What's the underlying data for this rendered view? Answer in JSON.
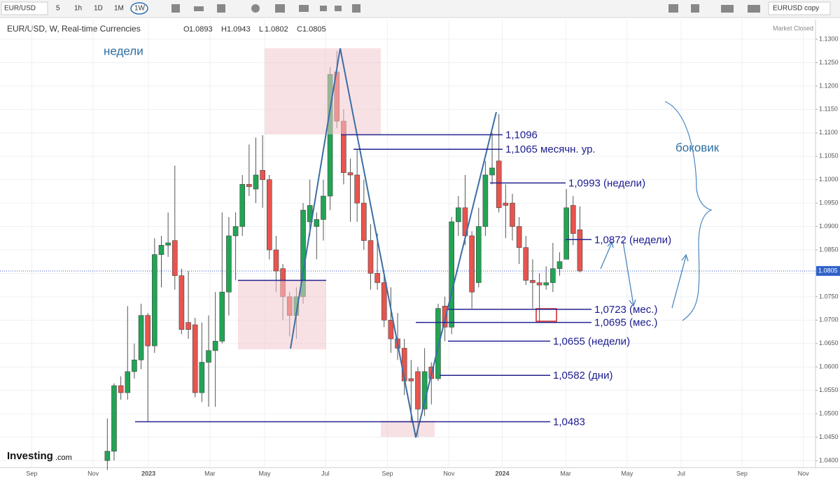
{
  "toolbar": {
    "symbol": "EUR/USD",
    "intervals": [
      "5",
      "1h",
      "1D",
      "1M",
      "1W"
    ],
    "layout": "EURUSD copy"
  },
  "chart_data": {
    "type": "candlestick",
    "title": "EUR/USD, W, Real-time Currencies",
    "ohlc": [
      {
        "label": "O",
        "value": 1.0893
      },
      {
        "label": "H",
        "value": 1.0943
      },
      {
        "label": "L",
        "value": 1.0802
      },
      {
        "label": "C",
        "value": 1.0805
      }
    ],
    "status": "Market Closed",
    "brand": "Investing",
    "brand_suffix": ".com",
    "last_price": 1.0805,
    "up_color": "#22a455",
    "down_color": "#e8544e",
    "x": [
      0,
      1,
      2,
      3,
      4,
      5,
      6,
      7,
      8,
      9,
      10,
      11,
      12,
      13,
      14,
      15,
      16,
      17,
      18,
      19,
      20,
      21,
      22,
      23,
      24,
      25,
      26,
      27,
      28,
      29,
      30,
      31,
      32,
      33,
      34,
      35,
      36,
      37,
      38,
      39,
      40,
      41,
      42,
      43,
      44,
      45,
      46,
      47,
      48,
      49,
      50,
      51,
      52,
      53,
      54,
      55,
      56,
      57,
      58,
      59,
      60,
      61,
      62,
      63,
      64,
      65,
      66,
      67,
      68,
      69,
      70
    ],
    "open": [
      1.04,
      1.042,
      1.056,
      1.0545,
      1.059,
      1.0615,
      1.071,
      1.0645,
      1.084,
      1.086,
      1.087,
      1.0795,
      1.0695,
      1.069,
      1.0545,
      1.061,
      1.0635,
      1.0655,
      1.076,
      1.088,
      1.09,
      1.099,
      1.098,
      1.102,
      1.1,
      1.085,
      1.081,
      1.075,
      1.071,
      1.075,
      1.091,
      1.09,
      1.0915,
      1.0965,
      1.123,
      1.1125,
      1.1015,
      1.101,
      1.095,
      1.087,
      1.08,
      1.078,
      1.07,
      1.066,
      1.064,
      1.0575,
      1.059,
      1.051,
      1.06,
      1.0575,
      1.073,
      1.0685,
      1.091,
      1.094,
      1.088,
      1.078,
      1.09,
      1.101,
      1.104,
      1.095,
      1.095,
      1.09,
      1.0855,
      1.0785,
      1.078,
      1.0775,
      1.078,
      1.081,
      1.083,
      1.0945,
      1.0893
    ],
    "high": [
      1.049,
      1.0565,
      1.058,
      1.073,
      1.065,
      1.0735,
      1.0715,
      1.0875,
      1.088,
      1.093,
      1.103,
      1.081,
      1.0805,
      1.0705,
      1.0695,
      1.071,
      1.076,
      1.093,
      1.092,
      1.093,
      1.101,
      1.1075,
      1.109,
      1.1095,
      1.101,
      1.088,
      1.082,
      1.076,
      1.077,
      1.095,
      1.1,
      1.093,
      1.1,
      1.124,
      1.1275,
      1.115,
      1.1045,
      1.1065,
      1.1,
      1.0905,
      1.0885,
      1.08,
      1.077,
      1.0715,
      1.066,
      1.0615,
      1.06,
      1.064,
      1.061,
      1.0735,
      1.075,
      1.092,
      1.0965,
      1.101,
      1.089,
      1.094,
      1.104,
      1.11,
      1.114,
      1.099,
      1.097,
      1.092,
      1.088,
      1.083,
      1.08,
      1.0815,
      1.0865,
      1.0845,
      1.098,
      1.0965,
      1.0943
    ],
    "low": [
      1.038,
      1.04,
      1.053,
      1.053,
      1.0575,
      1.0595,
      1.0483,
      1.063,
      1.077,
      1.0835,
      1.0765,
      1.067,
      1.066,
      1.0535,
      1.0525,
      1.0515,
      1.0515,
      1.065,
      1.071,
      1.0785,
      1.088,
      1.0965,
      1.095,
      1.094,
      1.083,
      1.076,
      1.07,
      1.0665,
      1.066,
      1.0735,
      1.088,
      1.083,
      1.087,
      1.0935,
      1.111,
      1.099,
      1.091,
      1.091,
      1.085,
      1.0765,
      1.0765,
      1.0685,
      1.063,
      1.0615,
      1.054,
      1.048,
      1.045,
      1.0495,
      1.052,
      1.057,
      1.0655,
      1.067,
      1.088,
      1.086,
      1.0725,
      1.077,
      1.088,
      1.099,
      1.093,
      1.0875,
      1.087,
      1.082,
      1.0775,
      1.0725,
      1.0695,
      1.0765,
      1.076,
      1.0795,
      1.083,
      1.086,
      1.0802
    ],
    "close": [
      1.042,
      1.056,
      1.0545,
      1.059,
      1.0615,
      1.071,
      1.0645,
      1.084,
      1.086,
      1.0865,
      1.0795,
      1.068,
      1.068,
      1.0545,
      1.061,
      1.0635,
      1.0655,
      1.076,
      1.088,
      1.09,
      1.099,
      1.0985,
      1.101,
      1.1,
      1.085,
      1.0805,
      1.075,
      1.071,
      1.075,
      1.0935,
      1.0945,
      1.0915,
      1.0965,
      1.1225,
      1.1125,
      1.1015,
      1.101,
      1.095,
      1.087,
      1.08,
      1.078,
      1.07,
      1.066,
      1.064,
      1.057,
      1.057,
      1.051,
      1.059,
      1.0575,
      1.0725,
      1.0685,
      1.091,
      1.094,
      1.088,
      1.076,
      1.09,
      1.101,
      1.1025,
      1.094,
      1.0945,
      1.09,
      1.0855,
      1.0785,
      1.078,
      1.0775,
      1.078,
      1.081,
      1.0825,
      1.094,
      1.0885,
      1.0805
    ],
    "xlim": [
      -15.9,
      104.9
    ],
    "xticks": [
      {
        "value": -11.2,
        "label": "Sep"
      },
      {
        "value": -2.1,
        "label": "Nov"
      },
      {
        "value": 6.1,
        "label": "2023"
      },
      {
        "value": 15.2,
        "label": "Mar"
      },
      {
        "value": 23.3,
        "label": "May"
      },
      {
        "value": 32.3,
        "label": "Jul"
      },
      {
        "value": 41.5,
        "label": "Sep"
      },
      {
        "value": 50.6,
        "label": "Nov"
      },
      {
        "value": 58.5,
        "label": "2024"
      },
      {
        "value": 67.9,
        "label": "Mar"
      },
      {
        "value": 77.0,
        "label": "May"
      },
      {
        "value": 85.0,
        "label": "Jul"
      },
      {
        "value": 94.0,
        "label": "Sep"
      },
      {
        "value": 103.1,
        "label": "Nov"
      }
    ],
    "ylim": [
      1.0385,
      1.1312
    ],
    "yticks": [
      {
        "value": 1.04,
        "label": "1.0400"
      },
      {
        "value": 1.045,
        "label": "1.0450"
      },
      {
        "value": 1.05,
        "label": "1.0500"
      },
      {
        "value": 1.055,
        "label": "1.0550"
      },
      {
        "value": 1.06,
        "label": "1.0600"
      },
      {
        "value": 1.065,
        "label": "1.0650"
      },
      {
        "value": 1.07,
        "label": "1.0700"
      },
      {
        "value": 1.075,
        "label": "1.0750"
      },
      {
        "value": 1.08,
        "label": "1.0800"
      },
      {
        "value": 1.085,
        "label": "1.0850"
      },
      {
        "value": 1.09,
        "label": "1.0900"
      },
      {
        "value": 1.095,
        "label": "1.0950"
      },
      {
        "value": 1.1,
        "label": "1.1000"
      },
      {
        "value": 1.105,
        "label": "1.1050"
      },
      {
        "value": 1.11,
        "label": "1.1100"
      },
      {
        "value": 1.115,
        "label": "1.1150"
      },
      {
        "value": 1.12,
        "label": "1.1200"
      },
      {
        "value": 1.125,
        "label": "1.1250"
      },
      {
        "value": 1.13,
        "label": "1.1300"
      }
    ],
    "grid": true,
    "levels": [
      {
        "value": 1.1096,
        "label": "1,1096"
      },
      {
        "value": 1.1065,
        "label": "1,1065 месячн. ур."
      },
      {
        "value": 1.0993,
        "label": "1,0993 (недели)"
      },
      {
        "value": 1.0872,
        "label": "1,0872 (недели)"
      },
      {
        "value": 1.0723,
        "label": "1,0723 (мес.)"
      },
      {
        "value": 1.0695,
        "label": "1,0695 (мес.)"
      },
      {
        "value": 1.0655,
        "label": "1,0655 (недели)"
      },
      {
        "value": 1.0582,
        "label": "1,0582 (дни)"
      },
      {
        "value": 1.0483,
        "label": "1,0483"
      },
      {
        "value": 1.0785
      }
    ],
    "annotations": [
      "недели",
      "боковик"
    ]
  }
}
